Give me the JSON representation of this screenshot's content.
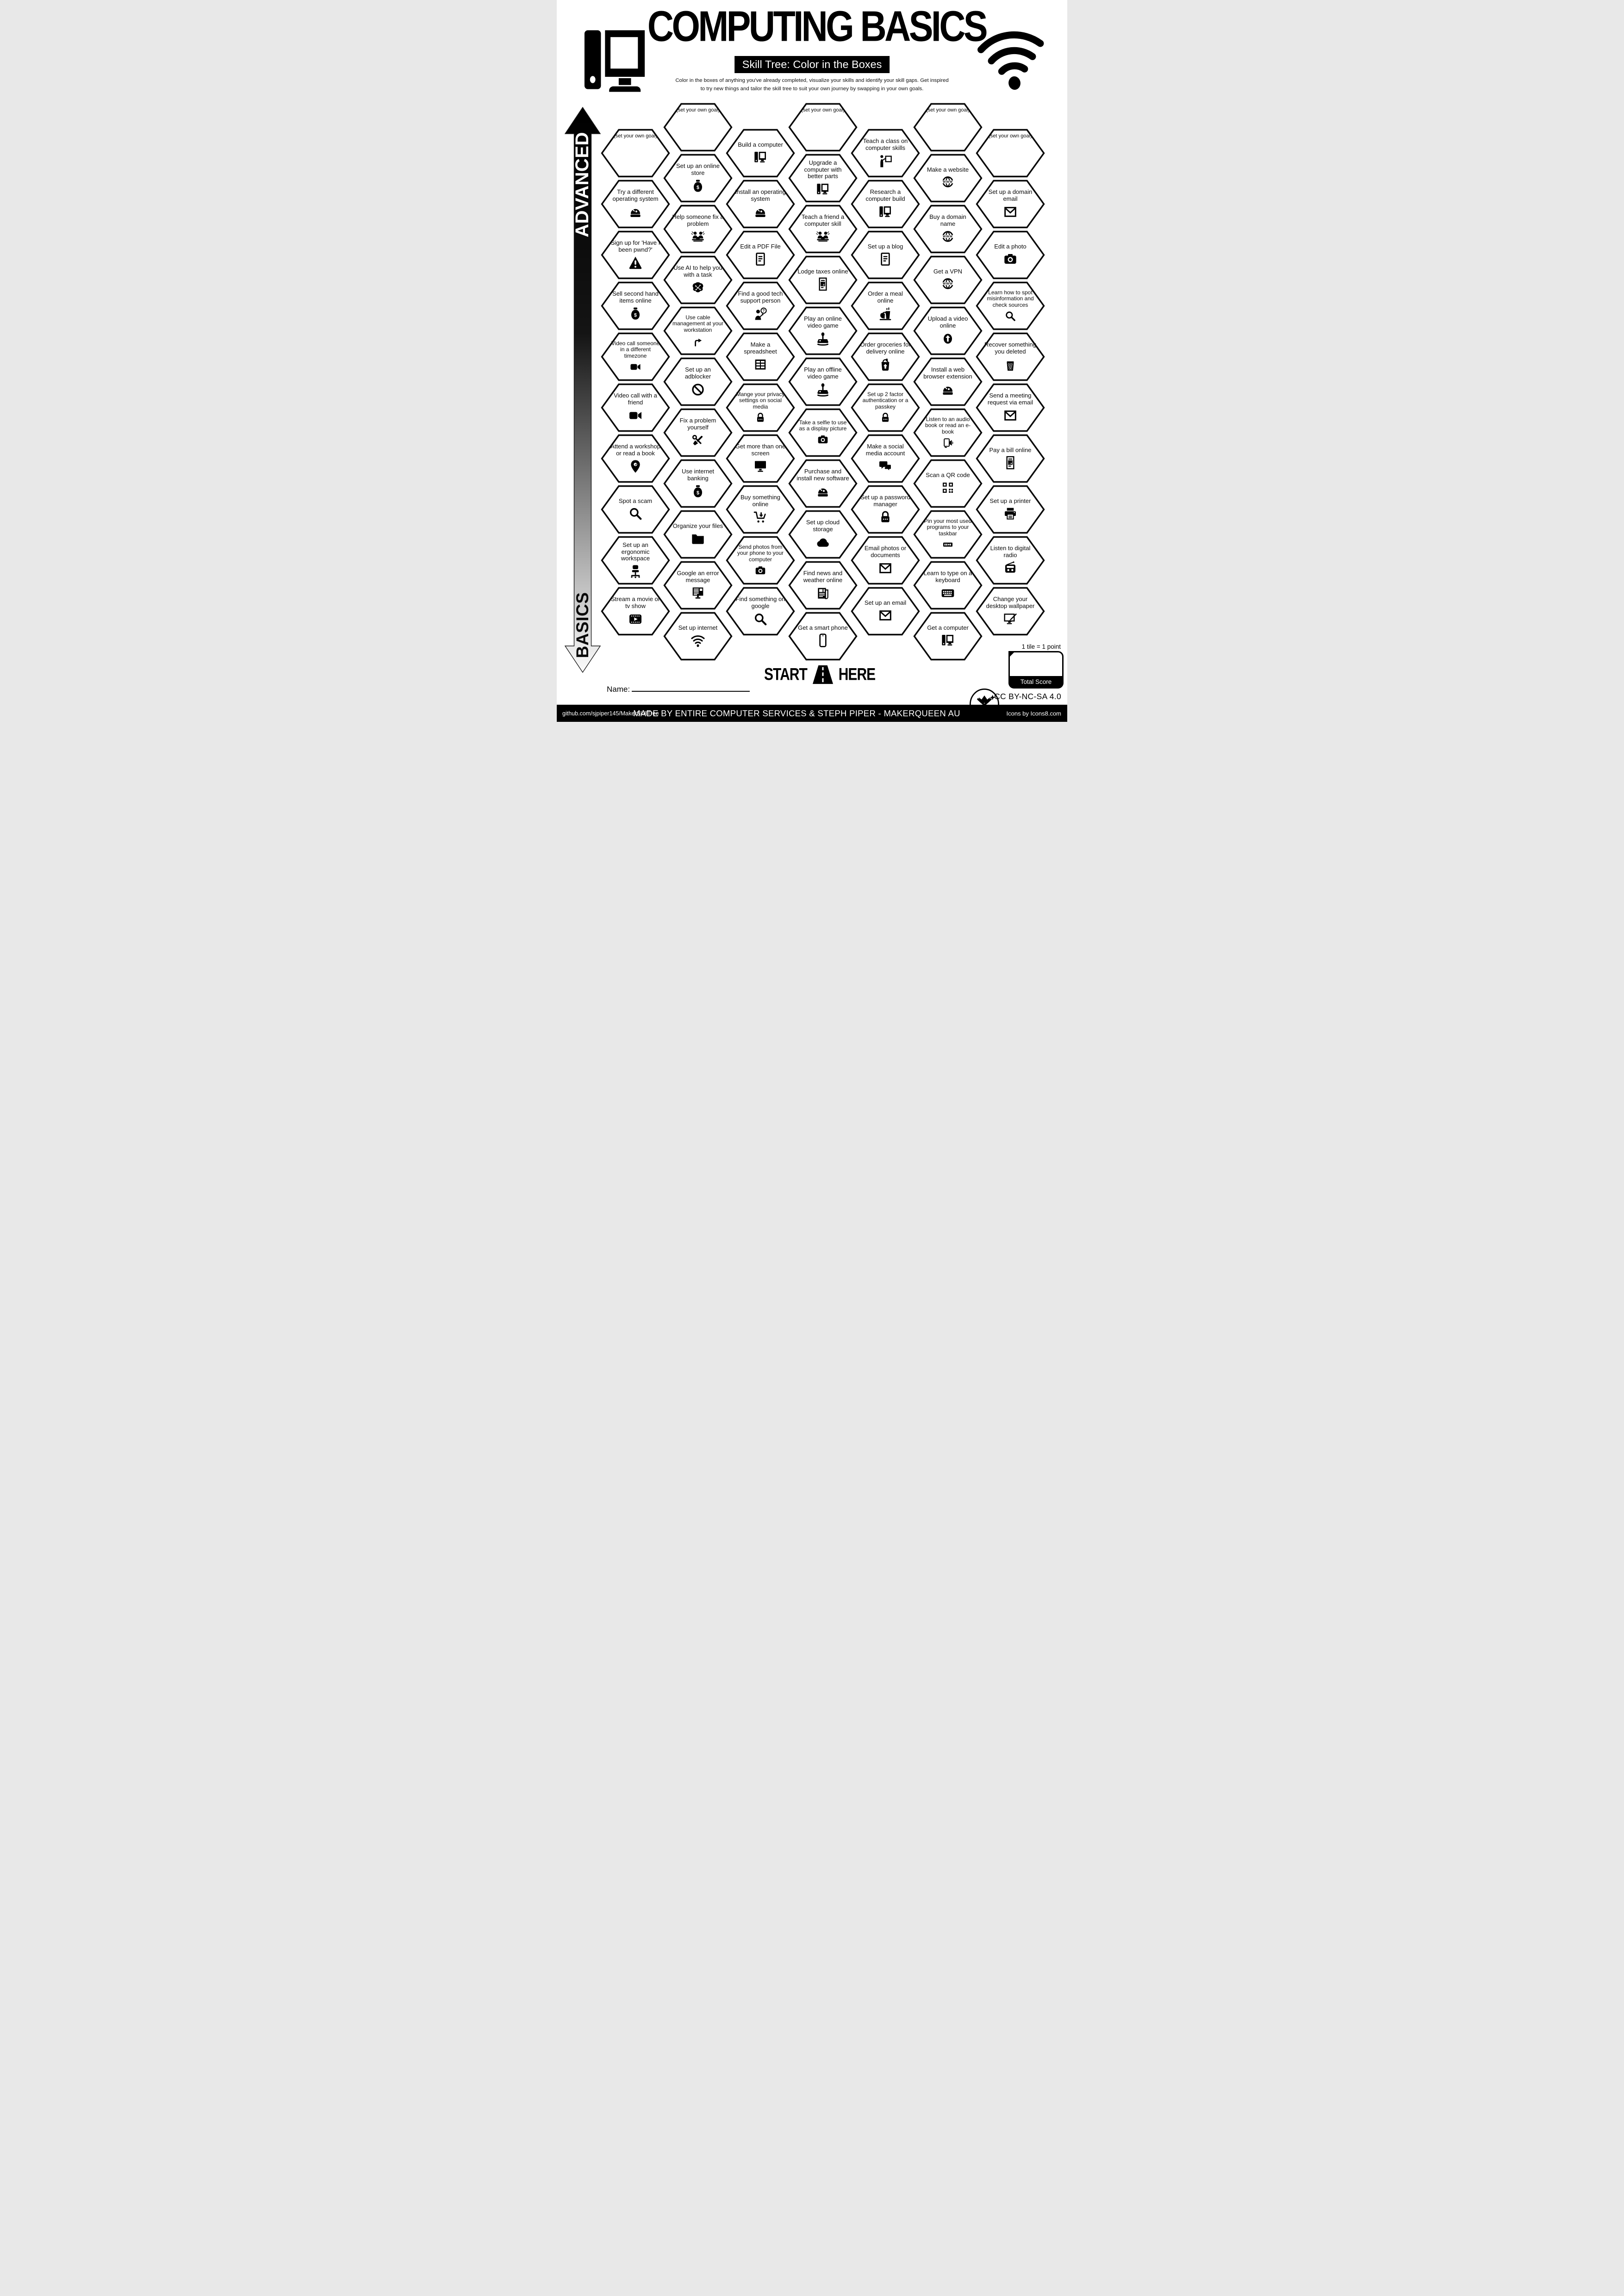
{
  "header": {
    "title": "COMPUTING BASICS",
    "subtitle": "Skill Tree: Color in the Boxes",
    "description_line1": "Color in the boxes of anything you've already completed, visualize your skills and identify your skill gaps.  Get inspired",
    "description_line2": "to try new things and tailor the skill tree to suit your own journey by swapping in your own goals.",
    "left_icon": "desktop-computer-icon",
    "right_icon": "wifi-icon"
  },
  "axis": {
    "top_label": "ADVANCED",
    "bottom_label": "BASICS"
  },
  "grid": {
    "columns": [
      {
        "items": [
          {
            "label": "(set your own goal)",
            "icon": "goal"
          },
          {
            "label": "Try a different operating system",
            "icon": "install-icon"
          },
          {
            "label": "Sign up for 'Have I been pwnd?'",
            "icon": "warning-icon"
          },
          {
            "label": "Sell second hand items online",
            "icon": "money-bag-icon"
          },
          {
            "label": "Video call someone in a different timezone",
            "icon": "video-camera-icon"
          },
          {
            "label": "Video call with a friend",
            "icon": "video-camera-icon"
          },
          {
            "label": "Attend a workshop or read a book",
            "icon": "location-pin-icon"
          },
          {
            "label": "Spot a scam",
            "icon": "magnifier-icon"
          },
          {
            "label": "Set up an ergonomic workspace",
            "icon": "office-chair-icon"
          },
          {
            "label": "Stream a movie or tv show",
            "icon": "film-play-icon"
          }
        ]
      },
      {
        "items": [
          {
            "label": "(set your own goal)",
            "icon": "goal"
          },
          {
            "label": "Set up an online store",
            "icon": "money-bag-icon"
          },
          {
            "label": "Help someone fix a problem",
            "icon": "helpers-icon"
          },
          {
            "label": "Use AI to help you with a task",
            "icon": "ai-brain-icon"
          },
          {
            "label": "Use cable management at your workstation",
            "icon": "cable-icon"
          },
          {
            "label": "Set up an adblocker",
            "icon": "block-icon"
          },
          {
            "label": "Fix a problem yourself",
            "icon": "tools-icon"
          },
          {
            "label": "Use internet banking",
            "icon": "money-bag-icon"
          },
          {
            "label": "Organize your files",
            "icon": "folder-icon"
          },
          {
            "label": "Google an error message",
            "icon": "error-monitor-icon"
          },
          {
            "label": "Set up internet",
            "icon": "wifi-icon"
          }
        ]
      },
      {
        "items": [
          {
            "label": "Build a computer",
            "icon": "computer-icon"
          },
          {
            "label": "Install an operating system",
            "icon": "install-icon"
          },
          {
            "label": "Edit a PDF File",
            "icon": "document-icon"
          },
          {
            "label": "Find a good tech support person",
            "icon": "support-person-icon"
          },
          {
            "label": "Make a spreadsheet",
            "icon": "spreadsheet-icon"
          },
          {
            "label": "Mange your privacy settings on social media",
            "icon": "padlock-icon"
          },
          {
            "label": "Get more than one screen",
            "icon": "monitor-icon"
          },
          {
            "label": "Buy something online",
            "icon": "cart-icon"
          },
          {
            "label": "Send photos from your phone to your computer",
            "icon": "camera-icon"
          },
          {
            "label": "Find something on google",
            "icon": "magnifier-icon"
          }
        ]
      },
      {
        "items": [
          {
            "label": "(set your own goal)",
            "icon": "goal"
          },
          {
            "label": "Upgrade a computer with better parts",
            "icon": "computer-icon"
          },
          {
            "label": "Teach a friend a computer skill",
            "icon": "helpers-icon"
          },
          {
            "label": "Lodge taxes online",
            "icon": "invoice-icon"
          },
          {
            "label": "Play an online video game",
            "icon": "joystick-icon"
          },
          {
            "label": "Play an offline video game",
            "icon": "joystick-icon"
          },
          {
            "label": "Take a selfie to use as a display picture",
            "icon": "camera-icon"
          },
          {
            "label": "Purchase and install new software",
            "icon": "install-icon"
          },
          {
            "label": "Set up cloud storage",
            "icon": "cloud-icon"
          },
          {
            "label": "Find news and weather online",
            "icon": "newspaper-icon"
          },
          {
            "label": "Get a smart phone",
            "icon": "smartphone-icon"
          }
        ]
      },
      {
        "items": [
          {
            "label": "Teach a class on computer skills",
            "icon": "teacher-board-icon"
          },
          {
            "label": "Research a computer build",
            "icon": "computer-icon"
          },
          {
            "label": "Set up a blog",
            "icon": "document-icon"
          },
          {
            "label": "Order a meal online",
            "icon": "meal-icon"
          },
          {
            "label": "Order groceries for delivery online",
            "icon": "grocery-bag-icon"
          },
          {
            "label": "Set up 2 factor authentication or a passkey",
            "icon": "padlock-icon"
          },
          {
            "label": "Make a social media account",
            "icon": "chat-bubbles-icon"
          },
          {
            "label": "Set up a password manager",
            "icon": "padlock-icon"
          },
          {
            "label": "Email photos or documents",
            "icon": "envelope-icon"
          },
          {
            "label": "Set up an email",
            "icon": "envelope-icon"
          }
        ]
      },
      {
        "items": [
          {
            "label": "(set your own goal)",
            "icon": "goal"
          },
          {
            "label": "Make a website",
            "icon": "www-globe-icon"
          },
          {
            "label": "Buy a domain name",
            "icon": "www-globe-icon"
          },
          {
            "label": "Get a VPN",
            "icon": "www-globe-icon"
          },
          {
            "label": "Upload a video online",
            "icon": "upload-icon"
          },
          {
            "label": "Install a web browser extension",
            "icon": "install-icon"
          },
          {
            "label": "Listen to an audio book or read an e-book",
            "icon": "audio-book-icon"
          },
          {
            "label": "Scan a QR code",
            "icon": "qr-code-icon"
          },
          {
            "label": "Pin your most used programs to your taskbar",
            "icon": "taskbar-icon"
          },
          {
            "label": "Learn to type on a keyboard",
            "icon": "keyboard-icon"
          },
          {
            "label": "Get a computer",
            "icon": "computer-icon"
          }
        ]
      },
      {
        "items": [
          {
            "label": "(set your own goal)",
            "icon": "goal"
          },
          {
            "label": "Set up a domain email",
            "icon": "envelope-icon"
          },
          {
            "label": "Edit a photo",
            "icon": "camera-icon"
          },
          {
            "label": "Learn how to spot misinformation and check sources",
            "icon": "magnifier-icon"
          },
          {
            "label": "Recover something you deleted",
            "icon": "trash-icon"
          },
          {
            "label": "Send a meeting request via email",
            "icon": "envelope-icon"
          },
          {
            "label": "Pay a bill online",
            "icon": "invoice-icon"
          },
          {
            "label": "Set up a printer",
            "icon": "printer-icon"
          },
          {
            "label": "Listen to digital radio",
            "icon": "radio-icon"
          },
          {
            "label": "Change your desktop wallpaper",
            "icon": "wallpaper-edit-icon"
          }
        ]
      }
    ]
  },
  "start_marker": {
    "start": "START",
    "here": "HERE"
  },
  "name_field": {
    "label": "Name:"
  },
  "score": {
    "note": "1 tile = 1 point",
    "total_label": "Total Score"
  },
  "footer": {
    "license": "CC BY-NC-SA 4.0",
    "left": "github.com/sjpiper145/MakerSkillTree",
    "center": "MADE BY ENTIRE COMPUTER SERVICES & STEPH PIPER  -  MAKERQUEEN AU",
    "right": "Icons by Icons8.com"
  },
  "colors": {
    "ink": "#000000",
    "paper": "#ffffff"
  }
}
